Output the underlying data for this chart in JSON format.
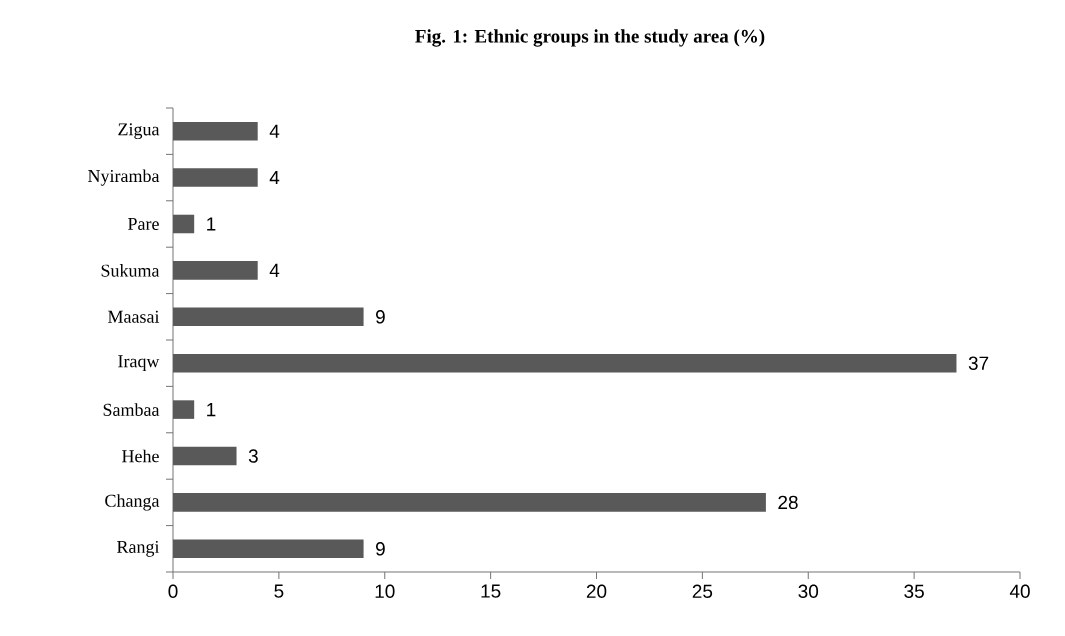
{
  "chart_data": {
    "type": "bar",
    "orientation": "horizontal",
    "title": "Fig. 1: Ethnic groups in the study area (%)",
    "categories": [
      "Zigua",
      "Nyiramba",
      "Pare",
      "Sukuma",
      "Maasai",
      "Iraqw",
      "Sambaa",
      "Hehe",
      "Changa",
      "Rangi"
    ],
    "values": [
      4,
      4,
      1,
      4,
      9,
      37,
      1,
      3,
      28,
      9
    ],
    "color": "#595959",
    "xlim": [
      0,
      40
    ],
    "xticks": [
      0,
      5,
      10,
      15,
      20,
      25,
      30,
      35,
      40
    ],
    "data_labels": true
  }
}
